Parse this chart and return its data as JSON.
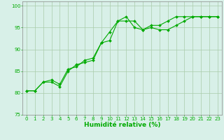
{
  "line1_x": [
    0,
    1,
    2,
    3,
    4,
    5,
    6,
    7,
    8,
    9,
    10,
    11,
    12,
    13,
    14,
    15,
    16,
    17,
    18,
    19,
    20,
    21,
    22,
    23
  ],
  "line1_y": [
    80.5,
    80.5,
    82.5,
    82.5,
    81.5,
    85.0,
    86.5,
    87.0,
    87.5,
    91.5,
    94.0,
    96.5,
    96.5,
    96.5,
    94.5,
    95.0,
    94.5,
    94.5,
    95.5,
    96.5,
    97.5,
    97.5,
    97.5,
    97.5
  ],
  "line2_x": [
    0,
    1,
    2,
    3,
    4,
    5,
    6,
    7,
    8,
    9,
    10,
    11,
    12,
    13,
    14,
    15,
    16,
    17,
    18,
    19,
    20,
    21,
    22,
    23
  ],
  "line2_y": [
    80.5,
    80.5,
    82.5,
    83.0,
    82.0,
    85.5,
    86.0,
    87.5,
    88.0,
    91.5,
    92.0,
    96.5,
    97.5,
    95.0,
    94.5,
    95.5,
    95.5,
    96.5,
    97.5,
    97.5,
    97.5,
    97.5,
    97.5,
    97.5
  ],
  "line_color": "#00aa00",
  "bg_color": "#d8f0e8",
  "grid_color": "#aaccaa",
  "xlim": [
    -0.5,
    23.5
  ],
  "ylim": [
    75,
    101
  ],
  "yticks": [
    75,
    80,
    85,
    90,
    95,
    100
  ],
  "xticks": [
    0,
    1,
    2,
    3,
    4,
    5,
    6,
    7,
    8,
    9,
    10,
    11,
    12,
    13,
    14,
    15,
    16,
    17,
    18,
    19,
    20,
    21,
    22,
    23
  ],
  "xlabel": "Humidité relative (%)",
  "xlabel_color": "#00aa00",
  "tick_color": "#00aa00",
  "axis_color": "#888888",
  "tick_fontsize": 5.0,
  "xlabel_fontsize": 6.5
}
